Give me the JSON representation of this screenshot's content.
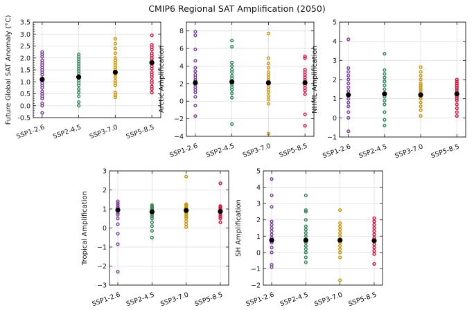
{
  "title": "CMIP6 Regional SAT Amplification (2050)",
  "colors": {
    "SSP1-2.6": "#7b3fa0",
    "SSP2-4.5": "#2e8b57",
    "SSP3-7.0": "#c8960c",
    "SSP5-8.5": "#dc143c",
    "mean_marker": "#000000",
    "grid": "#dddddd"
  },
  "chart_data": [
    {
      "type": "scatter",
      "ylabel": "Future Global SAT Anomaly (°C)",
      "ylim": [
        -0.5,
        3.5
      ],
      "yticks": [
        -0.5,
        0.0,
        0.5,
        1.0,
        1.5,
        2.0,
        2.5,
        3.0,
        3.5
      ],
      "ytick_labels": [
        "-0.5",
        "0.0",
        "0.5",
        "1.0",
        "1.5",
        "2.0",
        "2.5",
        "3.0",
        "3.5"
      ],
      "categories": [
        "SSP1-2.6",
        "SSP2-4.5",
        "SSP3-7.0",
        "SSP5-8.5"
      ],
      "grid": true,
      "series": [
        {
          "values": [
            -0.3,
            0.0,
            0.1,
            0.3,
            0.4,
            0.5,
            0.6,
            0.75,
            0.85,
            0.95,
            1.05,
            1.15,
            1.3,
            1.4,
            1.5,
            1.6,
            1.7,
            1.8,
            1.9,
            2.05,
            2.15,
            2.25
          ]
        },
        {
          "values": [
            0.0,
            0.15,
            0.4,
            0.55,
            0.7,
            0.85,
            0.95,
            1.05,
            1.15,
            1.25,
            1.35,
            1.45,
            1.55,
            1.65,
            1.75,
            1.85,
            1.95,
            2.05,
            2.15
          ]
        },
        {
          "values": [
            0.35,
            0.45,
            0.55,
            0.85,
            0.95,
            1.05,
            1.2,
            1.3,
            1.4,
            1.5,
            1.6,
            1.7,
            1.8,
            1.9,
            2.0,
            2.2,
            2.4,
            2.6,
            2.8
          ]
        },
        {
          "values": [
            0.55,
            0.7,
            0.8,
            0.95,
            1.05,
            1.2,
            1.3,
            1.4,
            1.55,
            1.65,
            1.8,
            1.9,
            2.0,
            2.1,
            2.2,
            2.35,
            2.45,
            2.55,
            2.95
          ]
        }
      ],
      "means": [
        1.1,
        1.2,
        1.4,
        1.8
      ]
    },
    {
      "type": "scatter",
      "ylabel": "Arctic Amplification",
      "ylim": [
        -4,
        9
      ],
      "yticks": [
        -4,
        -2,
        0,
        2,
        4,
        6,
        8
      ],
      "ytick_labels": [
        "−4",
        "−2",
        "0",
        "2",
        "4",
        "6",
        "8"
      ],
      "categories": [
        "SSP1-2.6",
        "SSP2-4.5",
        "SSP3-7.0",
        "SSP5-8.5"
      ],
      "grid": true,
      "series": [
        {
          "values": [
            -1.7,
            -0.5,
            0.5,
            1.0,
            1.3,
            1.6,
            1.9,
            2.1,
            2.4,
            2.7,
            3.0,
            3.4,
            3.8,
            4.6,
            5.9,
            7.5,
            7.9
          ]
        },
        {
          "values": [
            -2.6,
            0.4,
            0.9,
            1.3,
            1.6,
            1.9,
            2.1,
            2.3,
            2.6,
            2.9,
            3.3,
            3.6,
            4.0,
            4.4,
            6.2,
            6.9
          ]
        },
        {
          "values": [
            -3.7,
            -0.3,
            0.2,
            0.6,
            1.0,
            1.3,
            1.6,
            1.9,
            2.1,
            2.4,
            2.7,
            3.0,
            3.3,
            3.8,
            4.3,
            4.9,
            7.7
          ]
        },
        {
          "values": [
            -2.8,
            -1.5,
            0.8,
            1.2,
            1.5,
            1.8,
            2.1,
            2.4,
            2.7,
            3.0,
            3.3,
            3.6,
            4.9,
            5.1
          ]
        }
      ],
      "means": [
        2.1,
        2.2,
        2.1,
        2.1
      ]
    },
    {
      "type": "scatter",
      "ylabel": "NHML Amplification",
      "ylim": [
        -1,
        5
      ],
      "yticks": [
        -1,
        0,
        1,
        2,
        3,
        4,
        5
      ],
      "ytick_labels": [
        "−1",
        "0",
        "1",
        "2",
        "3",
        "4",
        "5"
      ],
      "categories": [
        "SSP1-2.6",
        "SSP2-4.5",
        "SSP3-7.0",
        "SSP5-8.5"
      ],
      "grid": true,
      "series": [
        {
          "values": [
            -0.7,
            0.0,
            0.3,
            0.6,
            0.8,
            1.0,
            1.2,
            1.4,
            1.6,
            1.8,
            2.0,
            2.2,
            2.4,
            2.6,
            4.1
          ]
        },
        {
          "values": [
            -0.4,
            -0.1,
            0.3,
            0.7,
            0.9,
            1.1,
            1.3,
            1.5,
            1.7,
            1.9,
            2.1,
            2.3,
            2.5,
            3.35
          ]
        },
        {
          "values": [
            0.1,
            0.4,
            0.6,
            0.8,
            1.0,
            1.1,
            1.2,
            1.3,
            1.4,
            1.5,
            1.6,
            1.7,
            1.8,
            2.0,
            2.2,
            2.4,
            2.65
          ]
        },
        {
          "values": [
            0.1,
            0.3,
            0.5,
            0.7,
            0.9,
            1.0,
            1.1,
            1.2,
            1.3,
            1.4,
            1.5,
            1.6,
            1.7,
            1.8,
            1.9,
            2.0
          ]
        }
      ],
      "means": [
        1.2,
        1.25,
        1.2,
        1.25
      ]
    },
    {
      "type": "scatter",
      "ylabel": "Tropical Amplification",
      "ylim": [
        -3,
        3
      ],
      "yticks": [
        -3,
        -2,
        -1,
        0,
        1,
        2,
        3
      ],
      "ytick_labels": [
        "−3",
        "−2",
        "−1",
        "0",
        "1",
        "2",
        "3"
      ],
      "categories": [
        "SSP1-2.6",
        "SSP2-4.5",
        "SSP3-7.0",
        "SSP5-8.5"
      ],
      "grid": true,
      "series": [
        {
          "values": [
            -2.3,
            -0.85,
            -0.3,
            0.2,
            0.5,
            0.7,
            0.8,
            0.9,
            1.0,
            1.1,
            1.2,
            1.3,
            1.4
          ]
        },
        {
          "values": [
            -0.5,
            -0.15,
            0.1,
            0.3,
            0.5,
            0.6,
            0.7,
            0.8,
            0.85,
            0.9,
            0.95,
            1.0,
            1.05,
            1.1,
            1.15,
            1.2
          ]
        },
        {
          "values": [
            0.05,
            0.2,
            0.35,
            0.5,
            0.6,
            0.7,
            0.8,
            0.85,
            0.9,
            0.95,
            1.0,
            1.05,
            1.1,
            1.15,
            1.2,
            1.25,
            2.7
          ]
        },
        {
          "values": [
            0.3,
            0.5,
            0.6,
            0.7,
            0.8,
            0.85,
            0.9,
            0.95,
            1.0,
            1.05,
            1.1,
            1.15,
            2.35
          ]
        }
      ],
      "means": [
        0.95,
        0.85,
        0.92,
        0.87
      ]
    },
    {
      "type": "scatter",
      "ylabel": "SH Amplification",
      "ylim": [
        -2,
        5
      ],
      "yticks": [
        -2,
        -1,
        0,
        1,
        2,
        3,
        4,
        5
      ],
      "ytick_labels": [
        "−2",
        "−1",
        "0",
        "1",
        "2",
        "3",
        "4",
        "5"
      ],
      "categories": [
        "SSP1-2.6",
        "SSP2-4.5",
        "SSP3-7.0",
        "SSP5-8.5"
      ],
      "grid": true,
      "series": [
        {
          "values": [
            -0.9,
            -0.75,
            0.0,
            0.3,
            0.6,
            0.9,
            1.1,
            1.3,
            1.5,
            1.7,
            1.9,
            2.8,
            3.5,
            4.5
          ]
        },
        {
          "values": [
            -0.6,
            -0.3,
            0.0,
            0.2,
            0.4,
            0.6,
            0.8,
            1.0,
            1.2,
            1.4,
            1.6,
            2.0,
            2.5,
            2.6,
            3.5
          ]
        },
        {
          "values": [
            -1.7,
            -0.3,
            0.0,
            0.2,
            0.4,
            0.6,
            0.8,
            1.0,
            1.2,
            1.4,
            1.6,
            1.8,
            2.6
          ]
        },
        {
          "values": [
            -0.7,
            -0.1,
            0.1,
            0.3,
            0.5,
            0.7,
            0.9,
            1.1,
            1.3,
            1.5,
            1.7,
            1.9,
            2.1
          ]
        }
      ],
      "means": [
        0.75,
        0.75,
        0.75,
        0.72
      ]
    }
  ]
}
